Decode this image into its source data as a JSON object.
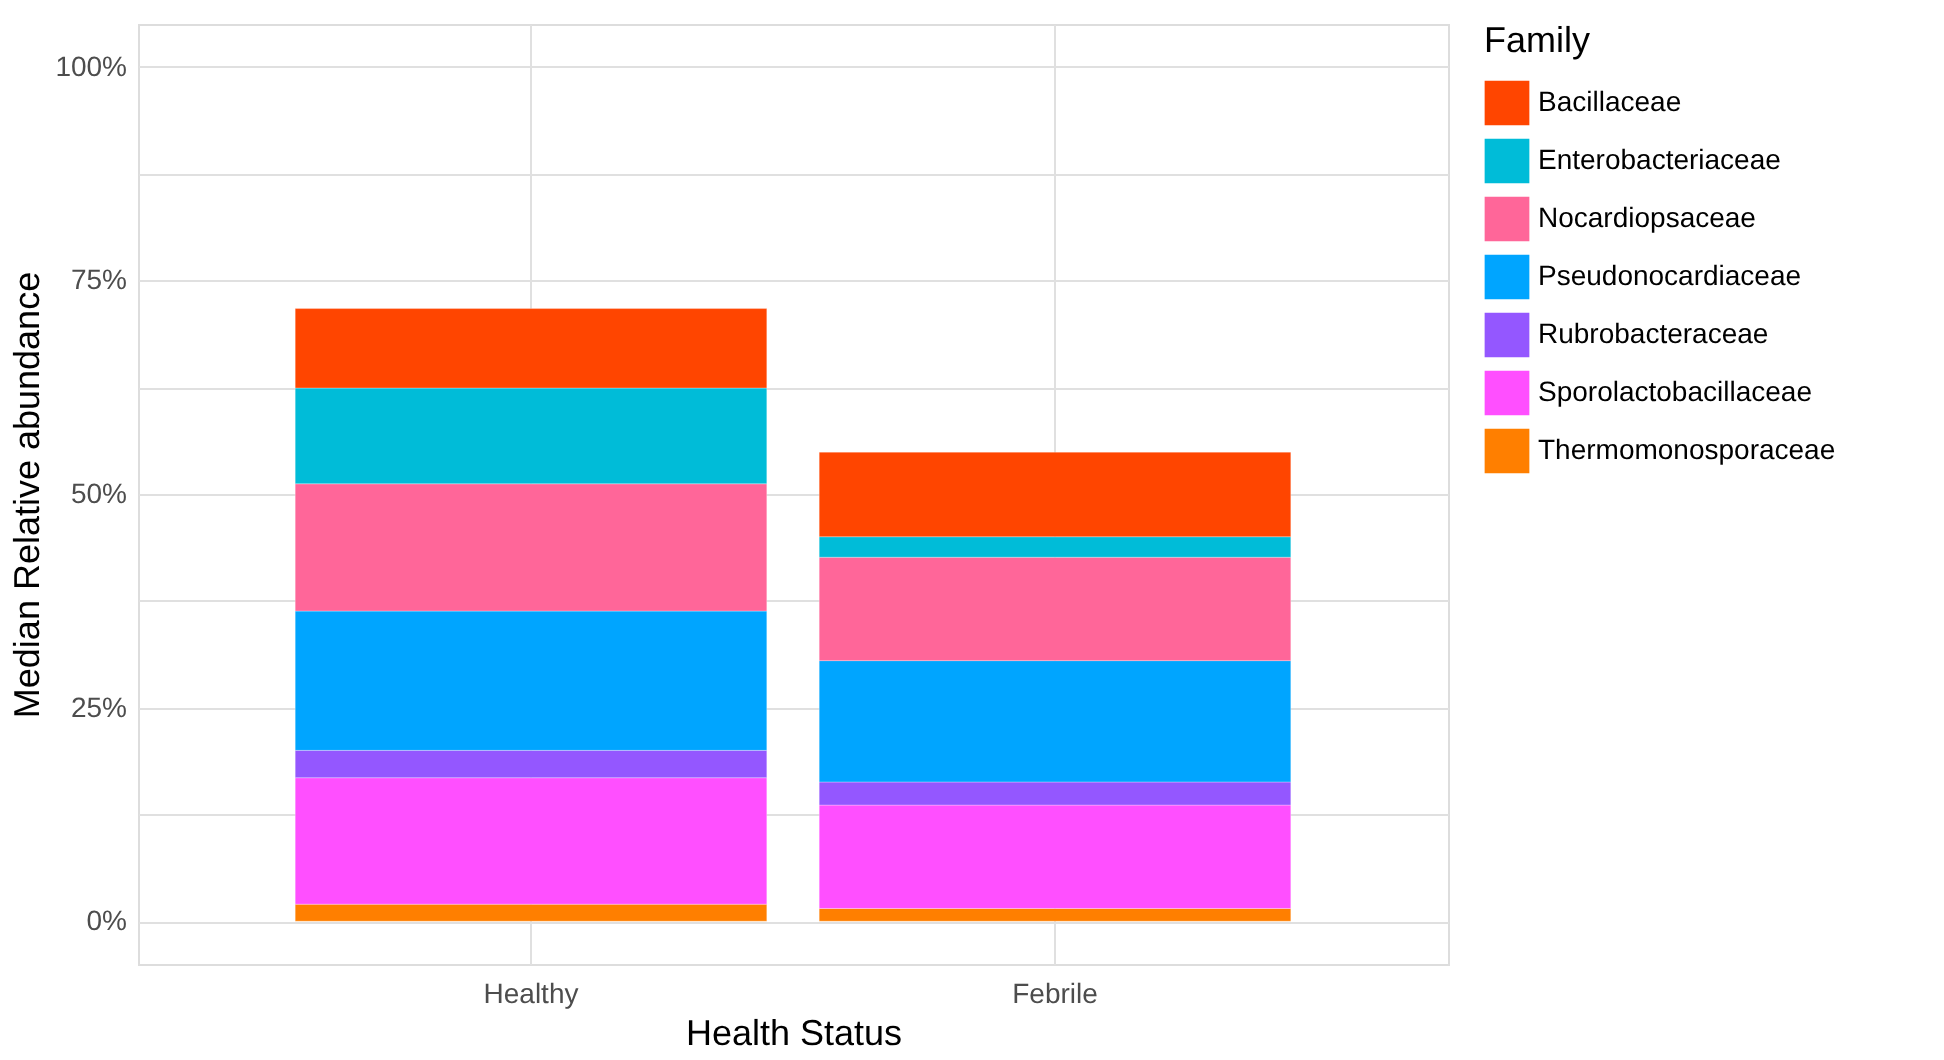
{
  "chart_data": {
    "type": "bar",
    "stacked": true,
    "xlabel": "Health Status",
    "ylabel": "Median Relative abundance",
    "legend_title": "Family",
    "legend": "right",
    "grid": true,
    "categories": [
      "Healthy",
      "Febrile"
    ],
    "series": [
      {
        "name": "Thermomonosporaceae",
        "color": "#ff7f00",
        "values": [
          2.0,
          1.5
        ]
      },
      {
        "name": "Sporolactobacillaceae",
        "color": "#ff4fff",
        "values": [
          14.8,
          12.1
        ]
      },
      {
        "name": "Rubrobacteraceae",
        "color": "#9457ff",
        "values": [
          3.2,
          2.7
        ]
      },
      {
        "name": "Pseudonocardiaceae",
        "color": "#00a5ff",
        "values": [
          16.3,
          14.2
        ]
      },
      {
        "name": "Nocardiopsaceae",
        "color": "#ff6699",
        "values": [
          14.9,
          12.1
        ]
      },
      {
        "name": "Enterobacteriaceae",
        "color": "#00bcd8",
        "values": [
          11.2,
          2.4
        ]
      },
      {
        "name": "Bacillaceae",
        "color": "#ff4500",
        "values": [
          9.3,
          9.9
        ]
      }
    ],
    "ylim": [
      -5,
      105
    ],
    "yticks": [
      {
        "value": 0,
        "label": "0%"
      },
      {
        "value": 12.5,
        "label": null
      },
      {
        "value": 25,
        "label": "25%"
      },
      {
        "value": 37.5,
        "label": null
      },
      {
        "value": 50,
        "label": "50%"
      },
      {
        "value": 62.5,
        "label": null
      },
      {
        "value": 75,
        "label": "75%"
      },
      {
        "value": 87.5,
        "label": null
      },
      {
        "value": 100,
        "label": "100%"
      }
    ]
  }
}
